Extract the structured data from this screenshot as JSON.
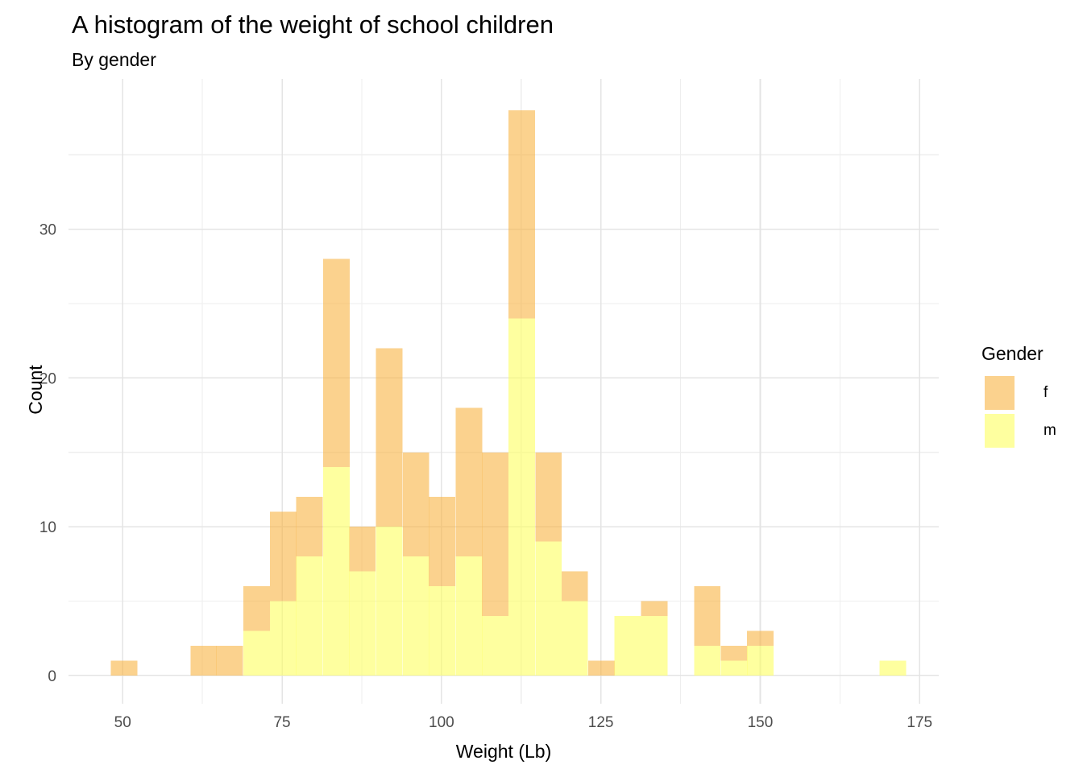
{
  "chart_data": {
    "type": "bar",
    "subtype": "stacked-histogram",
    "title": "A histogram of the weight of school children",
    "subtitle": "By gender",
    "xlabel": "Weight (Lb)",
    "ylabel": "Count",
    "legend": {
      "title": "Gender",
      "position": "right",
      "entries": [
        {
          "label": "f",
          "color_key": "bar_f"
        },
        {
          "label": "m",
          "color_key": "bar_m"
        }
      ]
    },
    "axes": {
      "x": {
        "ticks": [
          50,
          75,
          100,
          125,
          150,
          175
        ],
        "minor_gridlines": [
          62.5,
          87.5,
          112.5,
          137.5,
          162.5
        ],
        "domain": [
          41.5,
          178.0
        ]
      },
      "y": {
        "ticks": [
          0,
          10,
          20,
          30
        ],
        "minor_gridlines": [
          5,
          15,
          25,
          35
        ],
        "domain": [
          -1.9,
          40.1
        ]
      }
    },
    "binwidth": 4.16,
    "stack_order_bottom_to_top": [
      "m",
      "f"
    ],
    "bins": [
      {
        "center": 50.2,
        "f": 1,
        "m": 0
      },
      {
        "center": 54.4,
        "f": 0,
        "m": 0
      },
      {
        "center": 58.5,
        "f": 0,
        "m": 0
      },
      {
        "center": 62.7,
        "f": 2,
        "m": 0
      },
      {
        "center": 66.8,
        "f": 2,
        "m": 0
      },
      {
        "center": 71.0,
        "f": 3,
        "m": 3
      },
      {
        "center": 75.2,
        "f": 6,
        "m": 5
      },
      {
        "center": 79.3,
        "f": 4,
        "m": 8
      },
      {
        "center": 83.5,
        "f": 14,
        "m": 14
      },
      {
        "center": 87.6,
        "f": 3,
        "m": 7
      },
      {
        "center": 91.8,
        "f": 12,
        "m": 10
      },
      {
        "center": 96.0,
        "f": 7,
        "m": 8
      },
      {
        "center": 100.1,
        "f": 6,
        "m": 6
      },
      {
        "center": 104.3,
        "f": 10,
        "m": 8
      },
      {
        "center": 108.4,
        "f": 11,
        "m": 4
      },
      {
        "center": 112.6,
        "f": 14,
        "m": 24
      },
      {
        "center": 116.8,
        "f": 6,
        "m": 9
      },
      {
        "center": 120.9,
        "f": 2,
        "m": 5
      },
      {
        "center": 125.1,
        "f": 1,
        "m": 0
      },
      {
        "center": 129.2,
        "f": 0,
        "m": 4
      },
      {
        "center": 133.4,
        "f": 1,
        "m": 4
      },
      {
        "center": 137.6,
        "f": 0,
        "m": 0
      },
      {
        "center": 141.7,
        "f": 4,
        "m": 2
      },
      {
        "center": 145.9,
        "f": 1,
        "m": 1
      },
      {
        "center": 150.0,
        "f": 1,
        "m": 2
      },
      {
        "center": 154.2,
        "f": 0,
        "m": 0
      },
      {
        "center": 158.4,
        "f": 0,
        "m": 0
      },
      {
        "center": 162.5,
        "f": 0,
        "m": 0
      },
      {
        "center": 166.7,
        "f": 0,
        "m": 0
      },
      {
        "center": 170.8,
        "f": 0,
        "m": 1
      }
    ],
    "colors": {
      "bar_f": "#F8B443",
      "bar_m": "#FDFF5F",
      "bar_opacity": 0.6,
      "grid_major": "#E4E4E4",
      "grid_minor": "#EEEEEE",
      "tick_label": "#4D4D4D",
      "text": "#000000",
      "background": "#FFFFFF"
    }
  }
}
